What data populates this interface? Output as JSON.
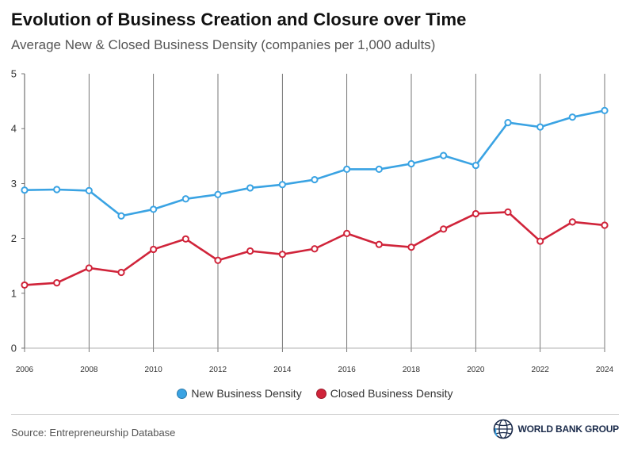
{
  "header": {
    "title": "Evolution of Business Creation and Closure over Time",
    "subtitle": "Average New & Closed Business Density (companies per 1,000 adults)"
  },
  "footer": {
    "source": "Source: Entrepreneurship Database",
    "logo_text": "WORLD BANK GROUP"
  },
  "colors": {
    "new": "#3aa3e3",
    "closed": "#d0243a",
    "grid": "#555555",
    "axis_text": "#333333"
  },
  "chart_data": {
    "type": "line",
    "title": "Evolution of Business Creation and Closure over Time",
    "subtitle": "Average New & Closed Business Density (companies per 1,000 adults)",
    "xlabel": "",
    "ylabel": "",
    "x": [
      2006,
      2007,
      2008,
      2009,
      2010,
      2011,
      2012,
      2013,
      2014,
      2015,
      2016,
      2017,
      2018,
      2019,
      2020,
      2021,
      2022,
      2023,
      2024
    ],
    "x_ticks": [
      "2006",
      "2008",
      "2010",
      "2012",
      "2014",
      "2016",
      "2018",
      "2020",
      "2022",
      "2024"
    ],
    "y_ticks": [
      "0",
      "1",
      "2",
      "3",
      "4",
      "5"
    ],
    "ylim": [
      0,
      5
    ],
    "xlim": [
      2006,
      2024
    ],
    "grid": "vertical",
    "legend_position": "bottom-center",
    "series": [
      {
        "name": "New Business Density",
        "color": "#3aa3e3",
        "values": [
          2.88,
          2.89,
          2.87,
          2.41,
          2.53,
          2.72,
          2.8,
          2.92,
          2.98,
          3.07,
          3.26,
          3.26,
          3.36,
          3.51,
          3.33,
          4.11,
          4.03,
          4.21,
          4.33
        ]
      },
      {
        "name": "Closed Business Density",
        "color": "#d0243a",
        "values": [
          1.15,
          1.19,
          1.46,
          1.38,
          1.8,
          1.99,
          1.6,
          1.77,
          1.71,
          1.81,
          2.09,
          1.89,
          1.84,
          2.17,
          2.45,
          2.48,
          1.95,
          2.3,
          2.24
        ]
      }
    ]
  }
}
